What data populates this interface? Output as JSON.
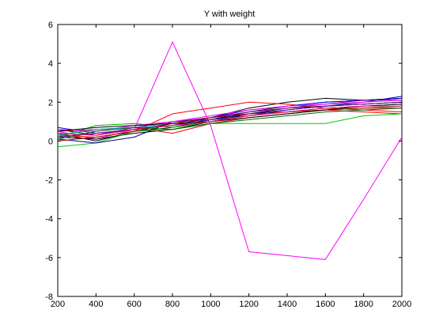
{
  "chart_data": {
    "type": "line",
    "title": "Y with weight",
    "xlabel": "",
    "ylabel": "",
    "xlim": [
      200,
      2000
    ],
    "ylim": [
      -8,
      6
    ],
    "x": [
      200,
      400,
      600,
      800,
      1000,
      1200,
      1400,
      1600,
      1800,
      2000
    ],
    "xticks": [
      "200",
      "400",
      "600",
      "800",
      "1000",
      "1200",
      "1400",
      "1600",
      "1800",
      "2000"
    ],
    "yticks": [
      "-8",
      "-6",
      "-4",
      "-2",
      "0",
      "2",
      "4",
      "6"
    ],
    "grid": false,
    "legend": "none",
    "series": [
      {
        "color": "#ff00ff",
        "values": [
          0.5,
          0.1,
          0.6,
          5.1,
          0.8,
          -5.7,
          -5.9,
          -6.1,
          -3.0,
          0.2
        ]
      },
      {
        "color": "#000000",
        "values": [
          0.4,
          0.0,
          0.5,
          0.7,
          1.1,
          1.5,
          1.8,
          2.0,
          2.1,
          2.2
        ]
      },
      {
        "color": "#000000",
        "values": [
          0.2,
          0.1,
          0.4,
          0.6,
          1.0,
          1.4,
          1.7,
          1.8,
          1.9,
          2.0
        ]
      },
      {
        "color": "#000000",
        "values": [
          0.6,
          0.3,
          0.6,
          0.8,
          1.2,
          1.7,
          2.0,
          2.2,
          2.1,
          2.2
        ]
      },
      {
        "color": "#ff0000",
        "values": [
          0.3,
          0.2,
          0.5,
          1.4,
          1.7,
          2.0,
          1.9,
          1.7,
          1.6,
          1.5
        ]
      },
      {
        "color": "#ff0000",
        "values": [
          0.5,
          0.6,
          0.7,
          0.4,
          0.9,
          1.2,
          1.4,
          1.6,
          1.5,
          1.4
        ]
      },
      {
        "color": "#00cc00",
        "values": [
          -0.3,
          -0.1,
          0.5,
          0.6,
          0.9,
          0.9,
          0.9,
          0.9,
          1.3,
          1.4
        ]
      },
      {
        "color": "#00aa00",
        "values": [
          0.2,
          0.8,
          0.9,
          0.7,
          1.0,
          1.3,
          1.5,
          1.6,
          1.7,
          1.8
        ]
      },
      {
        "color": "#0000ff",
        "values": [
          0.7,
          0.4,
          0.6,
          0.9,
          1.2,
          1.6,
          1.8,
          2.0,
          2.1,
          2.2
        ]
      },
      {
        "color": "#000088",
        "values": [
          0.1,
          -0.1,
          0.2,
          1.0,
          1.1,
          1.4,
          1.6,
          1.8,
          2.0,
          2.3
        ]
      },
      {
        "color": "#8800aa",
        "values": [
          0.4,
          0.3,
          0.7,
          1.0,
          1.2,
          1.5,
          1.7,
          1.9,
          2.1,
          2.1
        ]
      },
      {
        "color": "#ff00ff",
        "values": [
          0.6,
          0.5,
          0.8,
          1.0,
          1.3,
          1.6,
          1.8,
          1.9,
          2.0,
          2.1
        ]
      },
      {
        "color": "#00aaaa",
        "values": [
          0.3,
          0.6,
          0.7,
          0.8,
          1.1,
          1.3,
          1.5,
          1.7,
          1.8,
          1.9
        ]
      },
      {
        "color": "#aa0000",
        "values": [
          0.0,
          0.2,
          0.5,
          0.9,
          1.2,
          1.4,
          1.5,
          1.6,
          1.7,
          1.7
        ]
      },
      {
        "color": "#000000",
        "values": [
          0.5,
          0.7,
          0.8,
          0.9,
          1.0,
          1.2,
          1.4,
          1.6,
          1.8,
          1.9
        ]
      },
      {
        "color": "#5500aa",
        "values": [
          0.2,
          0.4,
          0.6,
          0.8,
          1.1,
          1.3,
          1.6,
          1.8,
          1.9,
          2.0
        ]
      },
      {
        "color": "#ff0066",
        "values": [
          0.4,
          0.3,
          0.6,
          0.8,
          1.0,
          1.3,
          1.5,
          1.7,
          1.8,
          1.8
        ]
      },
      {
        "color": "#006600",
        "values": [
          0.1,
          0.5,
          0.7,
          0.6,
          0.9,
          1.1,
          1.3,
          1.5,
          1.6,
          1.7
        ]
      }
    ]
  }
}
